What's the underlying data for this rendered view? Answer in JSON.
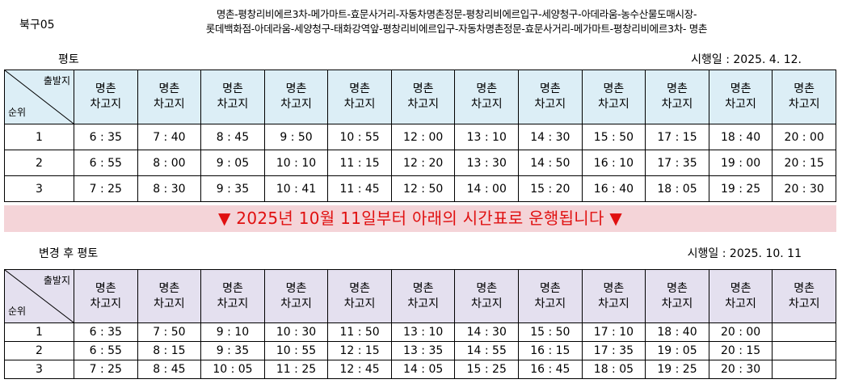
{
  "route_code": "북구05",
  "route_path": [
    "명촌-평창리비에르3차-메가마트-효문사거리-자동차명촌정문-평창리비에르입구-세양청구-아데라움-농수산물도매시장-",
    "롯데백화점-아데라움-세양청구-태화강역앞-평창리비에르입구-자동차명촌정문-효문사거리-메가마트-평창리비에르3차-  명촌"
  ],
  "notice": "▼ 2025년 10월 11일부터 아래의 시간표로 운행됩니다 ▼",
  "schedules": [
    {
      "title": "평토",
      "effective": "시행일 : 2025.  4. 12.",
      "header_top": "출발지",
      "header_bottom": "순위",
      "col_line1": "명촌",
      "col_line2": "차고지",
      "rows": [
        {
          "rank": "1",
          "times": [
            "6 : 35",
            "7 : 40",
            "8 : 45",
            "9 : 50",
            "10 : 55",
            "12 : 00",
            "13 : 10",
            "14 : 30",
            "15 : 50",
            "17 : 15",
            "18 : 40",
            "20 : 00"
          ]
        },
        {
          "rank": "2",
          "times": [
            "6 : 55",
            "8 : 00",
            "9 : 05",
            "10 : 10",
            "11 : 15",
            "12 : 20",
            "13 : 30",
            "14 : 50",
            "16 : 10",
            "17 : 35",
            "19 : 00",
            "20 : 15"
          ]
        },
        {
          "rank": "3",
          "times": [
            "7 : 25",
            "8 : 30",
            "9 : 35",
            "10 : 41",
            "11 : 45",
            "12 : 50",
            "14 : 00",
            "15 : 20",
            "16 : 40",
            "18 : 05",
            "19 : 25",
            "20 : 30"
          ]
        }
      ]
    },
    {
      "title": "변경 후 평토",
      "effective": "시행일 : 2025. 10. 11",
      "header_top": "출발지",
      "header_bottom": "순위",
      "col_line1": "명촌",
      "col_line2": "차고지",
      "rows": [
        {
          "rank": "1",
          "times": [
            "6 : 35",
            "7 : 50",
            "9 : 10",
            "10 : 30",
            "11 : 50",
            "13 : 10",
            "14 : 30",
            "15 : 50",
            "17 : 10",
            "18 : 40",
            "20 : 00",
            ""
          ]
        },
        {
          "rank": "2",
          "times": [
            "6 : 55",
            "8 : 15",
            "9 : 35",
            "10 : 55",
            "12 : 15",
            "13 : 35",
            "14 : 55",
            "16 : 15",
            "17 : 35",
            "19 : 05",
            "20 : 15",
            ""
          ]
        },
        {
          "rank": "3",
          "times": [
            "7 : 25",
            "8 : 45",
            "10 : 05",
            "11 : 25",
            "12 : 45",
            "14 : 05",
            "15 : 25",
            "16 : 45",
            "18 : 05",
            "19 : 25",
            "20 : 30",
            ""
          ]
        }
      ]
    }
  ]
}
